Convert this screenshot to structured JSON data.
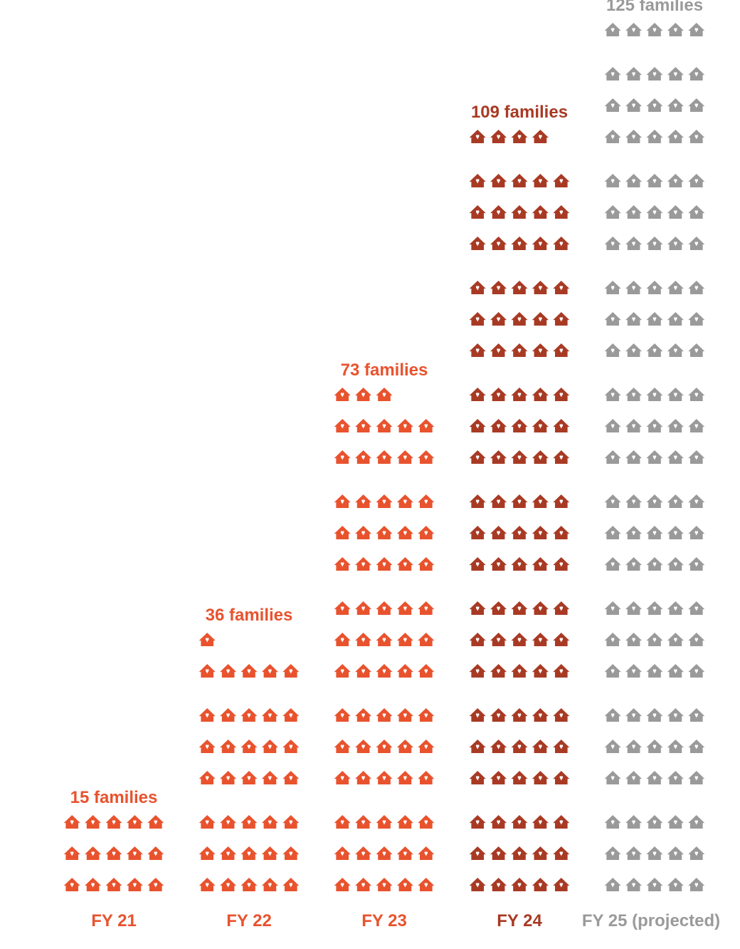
{
  "chart_data": {
    "type": "pictograph",
    "icon": "house-icon",
    "categories": [
      "FY 21",
      "FY 22",
      "FY 23",
      "FY 24",
      "FY 25 (projected)"
    ],
    "values": [
      15,
      36,
      73,
      109,
      125
    ],
    "value_labels": [
      "15 families",
      "36 families",
      "73 families",
      "109 families",
      "125 families"
    ],
    "colors": [
      "#e8532e",
      "#e8532e",
      "#e8532e",
      "#a83a24",
      "#9a9a9a"
    ],
    "icons_per_row": 5,
    "rows_per_group": 3
  }
}
